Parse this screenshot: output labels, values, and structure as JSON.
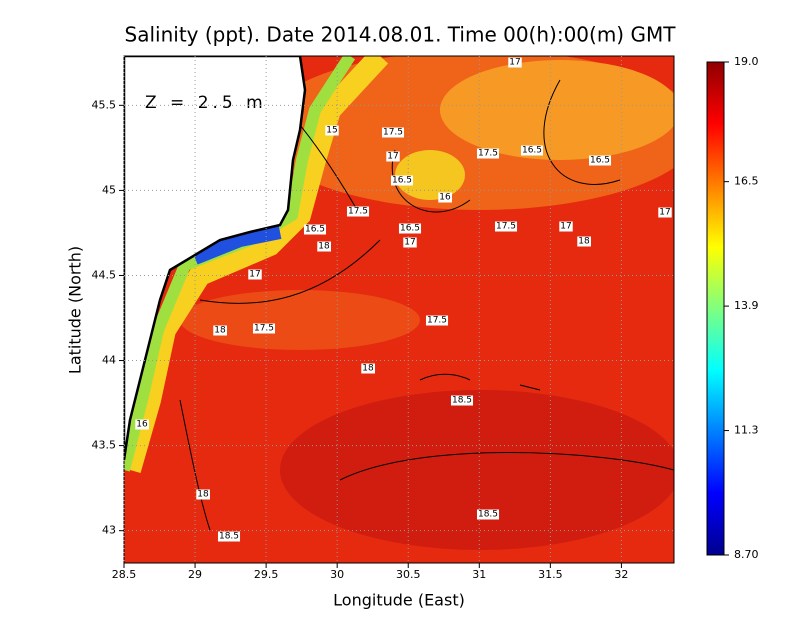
{
  "chart_data": {
    "type": "contour",
    "title": "Salinity (ppt). Date 2014.08.01. Time 00(h):00(m) GMT",
    "annotation": "Z = 2.5 m",
    "xlabel": "Longitude (East)",
    "ylabel": "Latitude (North)",
    "xlim": [
      28.5,
      32.37
    ],
    "ylim": [
      42.81,
      45.79
    ],
    "xticks": [
      28.5,
      29,
      29.5,
      30,
      30.5,
      31,
      31.5,
      32
    ],
    "yticks": [
      43,
      43.5,
      44,
      44.5,
      45,
      45.5
    ],
    "grid": true,
    "clim": [
      8.7,
      19.0
    ],
    "cticks": [
      {
        "value": 8.7,
        "label": "8.70"
      },
      11.3,
      13.9,
      16.5,
      {
        "value": 19.0,
        "label": "19.0"
      }
    ],
    "contour_labels": [
      17,
      15,
      17.5,
      17,
      17.5,
      16.5,
      16.5,
      16.5,
      16,
      17.5,
      16.5,
      16.5,
      17,
      17.5,
      17,
      18,
      17,
      18,
      17,
      17.5,
      18,
      17.5,
      18,
      18.5,
      16,
      18,
      18.5,
      18.5
    ]
  }
}
